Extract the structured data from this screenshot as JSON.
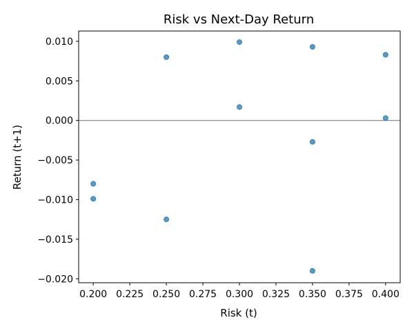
{
  "chart_data": {
    "type": "scatter",
    "title": "Risk vs Next-Day Return",
    "xlabel": "Risk (t)",
    "ylabel": "Return (t+1)",
    "xlim": [
      0.19,
      0.41
    ],
    "ylim": [
      -0.0205,
      0.0113
    ],
    "x_ticks": [
      0.2,
      0.225,
      0.25,
      0.275,
      0.3,
      0.325,
      0.35,
      0.375,
      0.4
    ],
    "x_tick_labels": [
      "0.200",
      "0.225",
      "0.250",
      "0.275",
      "0.300",
      "0.325",
      "0.350",
      "0.375",
      "0.400"
    ],
    "y_ticks": [
      0.01,
      0.005,
      0.0,
      -0.005,
      -0.01,
      -0.015,
      -0.02
    ],
    "y_tick_labels": [
      "0.010",
      "0.005",
      "0.000",
      "−0.005",
      "−0.010",
      "−0.015",
      "−0.020"
    ],
    "reference_line": {
      "y": 0.0,
      "color": "#808080"
    },
    "grid": false,
    "point_color": "#1f77b4",
    "points": [
      {
        "x": 0.2,
        "y": -0.008
      },
      {
        "x": 0.2,
        "y": -0.0099
      },
      {
        "x": 0.25,
        "y": 0.008
      },
      {
        "x": 0.25,
        "y": -0.0125
      },
      {
        "x": 0.3,
        "y": 0.0099
      },
      {
        "x": 0.3,
        "y": 0.0017
      },
      {
        "x": 0.35,
        "y": 0.0093
      },
      {
        "x": 0.35,
        "y": -0.0027
      },
      {
        "x": 0.35,
        "y": -0.019
      },
      {
        "x": 0.4,
        "y": 0.0083
      },
      {
        "x": 0.4,
        "y": 0.0003
      }
    ]
  }
}
